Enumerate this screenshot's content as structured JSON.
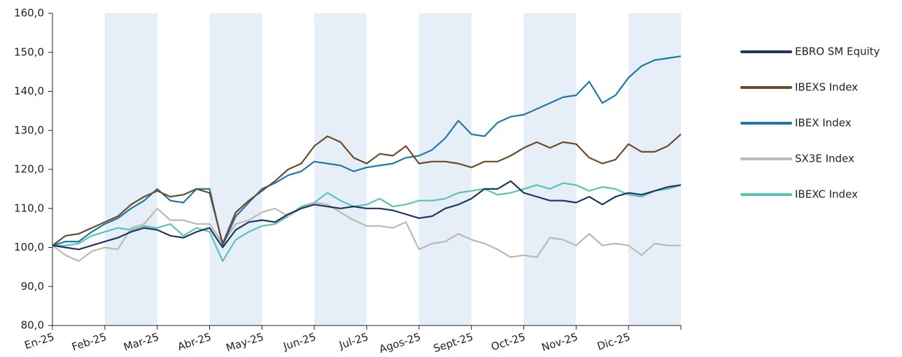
{
  "chart_data": {
    "type": "line",
    "categories": [
      "En-25",
      null,
      null,
      null,
      "Feb-25",
      null,
      null,
      null,
      "Mar-25",
      null,
      null,
      null,
      "Abr-25",
      null,
      null,
      null,
      "May-25",
      null,
      null,
      null,
      "Jun-25",
      null,
      null,
      null,
      "Jul-25",
      null,
      null,
      null,
      "Agos-25",
      null,
      null,
      null,
      "Sept-25",
      null,
      null,
      null,
      "Oct-25",
      null,
      null,
      null,
      "Nov-25",
      null,
      null,
      null,
      "Dic-25",
      null,
      null,
      null,
      null
    ],
    "ylim": [
      80,
      160
    ],
    "yticks": [
      {
        "value": 80,
        "label": "80,0"
      },
      {
        "value": 90,
        "label": "90,0"
      },
      {
        "value": 100,
        "label": "100,0"
      },
      {
        "value": 110,
        "label": "110,0"
      },
      {
        "value": 120,
        "label": "120,0"
      },
      {
        "value": 130,
        "label": "130,0"
      },
      {
        "value": 140,
        "label": "140,0"
      },
      {
        "value": 150,
        "label": "150,0"
      },
      {
        "value": 160,
        "label": "160,0"
      }
    ],
    "legend": "right",
    "series": [
      {
        "name": "EBRO SM Equity",
        "color": "#1c3660",
        "values": [
          100.5,
          100,
          99.5,
          100.5,
          101.5,
          102.5,
          104,
          105,
          104.5,
          103,
          102.5,
          104,
          105,
          100,
          104.5,
          106.5,
          107,
          106.5,
          108.5,
          110,
          111,
          110.5,
          110,
          110.5,
          110,
          110,
          109.5,
          108.5,
          107.5,
          108,
          110,
          111,
          112.5,
          115,
          115,
          117,
          114,
          113,
          112,
          112,
          111.5,
          113,
          111,
          113,
          114,
          113.5,
          114.5,
          115.5,
          116
        ]
      },
      {
        "name": "IBEXS Index",
        "color": "#6b4a2b",
        "values": [
          100.5,
          103,
          103.5,
          105,
          106.5,
          108,
          111,
          113,
          114.5,
          113,
          113.5,
          115,
          114,
          101,
          109,
          112,
          114.5,
          117,
          120,
          121.5,
          126,
          128.5,
          127,
          123,
          121.5,
          124,
          123.5,
          126,
          121.5,
          122,
          122,
          121.5,
          120.5,
          122,
          122,
          123.5,
          125.5,
          127,
          125.5,
          127,
          126.5,
          123,
          121.5,
          122.5,
          126.5,
          124.5,
          124.5,
          126,
          129
        ]
      },
      {
        "name": "IBEX Index",
        "color": "#1f78a8",
        "values": [
          100.5,
          101.5,
          101.5,
          104,
          106,
          107.5,
          110,
          112,
          115,
          112,
          111.5,
          115,
          115,
          100.5,
          108,
          111.5,
          115,
          116.5,
          118.5,
          119.5,
          122,
          121.5,
          121,
          119.5,
          120.5,
          121,
          121.5,
          123,
          123.5,
          125,
          128,
          132.5,
          129,
          128.5,
          132,
          133.5,
          134,
          135.5,
          137,
          138.5,
          139,
          142.5,
          137,
          139,
          143.5,
          146.5,
          148,
          148.5,
          149
        ]
      },
      {
        "name": "SX3E Index",
        "color": "#bdb8b0",
        "values": [
          100.5,
          98,
          96.5,
          99,
          100,
          99.5,
          105,
          106,
          110,
          107,
          107,
          106,
          106,
          101,
          106,
          107,
          109,
          110,
          108,
          110,
          111.5,
          111,
          109,
          107,
          105.5,
          105.5,
          105,
          106.5,
          99.5,
          101,
          101.5,
          103.5,
          102,
          101,
          99.5,
          97.5,
          98,
          97.5,
          102.5,
          102,
          100.5,
          103.5,
          100.5,
          101,
          100.5,
          98,
          101,
          100.5,
          100.5
        ]
      },
      {
        "name": "IBEXC Index",
        "color": "#5cc2b4",
        "values": [
          100.5,
          100.5,
          101,
          103,
          104,
          105,
          104.5,
          105.5,
          105,
          106,
          103,
          105,
          104,
          96.5,
          102,
          104,
          105.5,
          106,
          108,
          110.5,
          111.5,
          114,
          112,
          110.5,
          111,
          112.5,
          110.5,
          111,
          112,
          112,
          112.5,
          114,
          114.5,
          115,
          113.5,
          114,
          115,
          116,
          115,
          116.5,
          116,
          114.5,
          115.5,
          115,
          113.5,
          113,
          114.5,
          115,
          116
        ]
      }
    ]
  }
}
